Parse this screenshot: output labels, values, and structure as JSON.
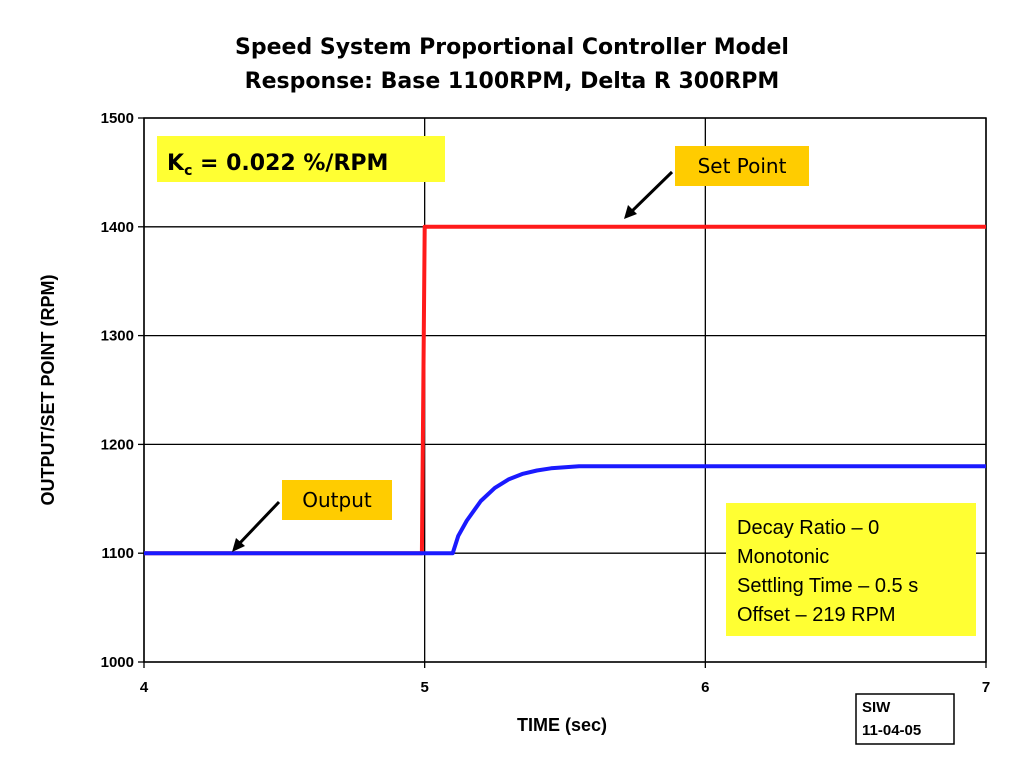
{
  "chart_data": {
    "type": "line",
    "title_lines": [
      "Speed System Proportional Controller Model",
      "Response: Base 1100RPM, Delta R 300RPM"
    ],
    "xlabel": "TIME (sec)",
    "ylabel": "OUTPUT/SET POINT (RPM)",
    "xlim": [
      4,
      7
    ],
    "ylim": [
      1000,
      1500
    ],
    "x_ticks": [
      "4",
      "5",
      "6",
      "7"
    ],
    "y_ticks": [
      "1000",
      "1100",
      "1200",
      "1300",
      "1400",
      "1500"
    ],
    "grid": true,
    "series": [
      {
        "name": "Set Point",
        "color": "#ff1a1a",
        "x": [
          4.0,
          4.99,
          5.0,
          5.02,
          7.0
        ],
        "y": [
          1100,
          1100,
          1400,
          1400,
          1400
        ]
      },
      {
        "name": "Output",
        "color": "#1a1aff",
        "x": [
          4.0,
          5.1,
          5.12,
          5.15,
          5.2,
          5.25,
          5.3,
          5.35,
          5.4,
          5.45,
          5.5,
          5.55,
          6.0,
          7.0
        ],
        "y": [
          1100,
          1100,
          1116,
          1130,
          1148,
          1160,
          1168,
          1173,
          1176,
          1178,
          1179,
          1180,
          1180,
          1180
        ]
      }
    ],
    "annotations": {
      "gain": {
        "symbol": "K",
        "subscript": "c",
        "text": " = 0.022 %/RPM"
      },
      "set_point_callout": "Set Point",
      "output_callout": "Output",
      "info_lines": [
        "Decay Ratio – 0",
        "Monotonic",
        "Settling Time – 0.5 s",
        "Offset – 219 RPM"
      ],
      "stamp_lines": [
        "SIW",
        "11-04-05"
      ]
    },
    "colors": {
      "callout_bg": "#ffcc00",
      "info_bg": "#ffff33"
    }
  }
}
